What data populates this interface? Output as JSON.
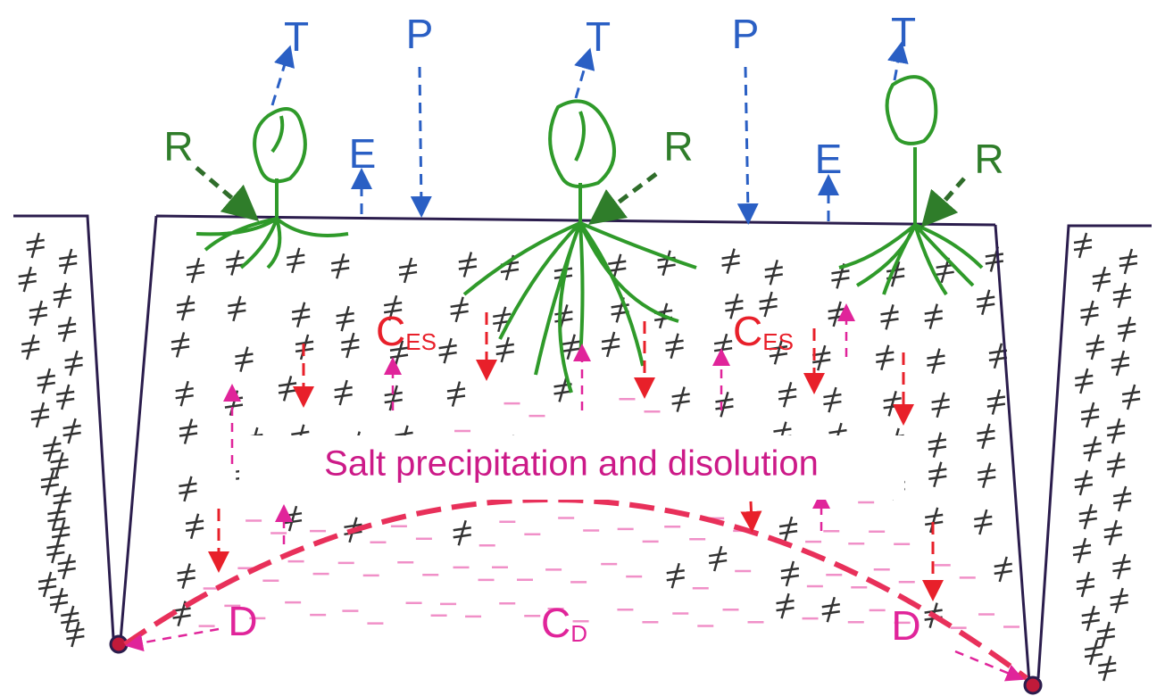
{
  "labels": {
    "transpiration": [
      "T",
      "T",
      "T"
    ],
    "precipitation": [
      "P",
      "P"
    ],
    "evaporation": [
      "E",
      "E"
    ],
    "irrigation": [
      "R",
      "R",
      "R"
    ],
    "salt_concentration": [
      {
        "main": "C",
        "sub": "ES"
      },
      {
        "main": "C",
        "sub": "ES"
      }
    ],
    "drainage": [
      "D",
      "D"
    ],
    "drain_concentration": {
      "main": "C",
      "sub": "D"
    },
    "caption": "Salt precipitation and disolution"
  }
}
